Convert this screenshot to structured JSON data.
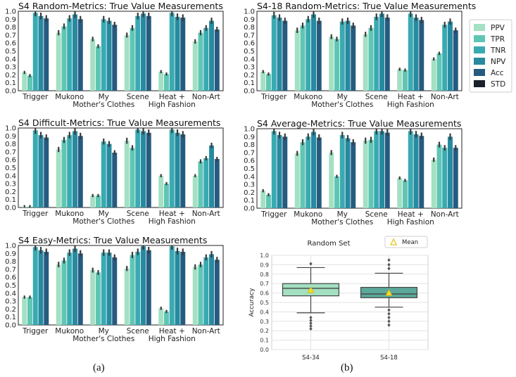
{
  "figure": {
    "caption_a": "(a)",
    "caption_b": "(b)"
  },
  "legend": {
    "labels": [
      "PPV",
      "TPR",
      "TNR",
      "NPV",
      "Acc",
      "STD"
    ],
    "colors": [
      "#a3e0c4",
      "#5fc6b4",
      "#3aaab2",
      "#278aa0",
      "#265b80",
      "#1a2128"
    ]
  },
  "chart_data": [
    {
      "id": "s4-random",
      "type": "bar",
      "title": "S4 Random-Metrics: True Value Measurements",
      "categories": [
        "Trigger",
        "Mukono",
        "My\nMother's Clothes",
        "Scene",
        "Heat +\nHigh Fashion",
        "Non-Art"
      ],
      "ylim": [
        0,
        1.0
      ],
      "yticks": [
        "0.0",
        "0.1",
        "0.2",
        "0.3",
        "0.4",
        "0.5",
        "0.6",
        "0.7",
        "0.8",
        "0.9",
        "1.0"
      ],
      "series": [
        {
          "name": "PPV",
          "values": [
            0.23,
            0.73,
            0.65,
            0.7,
            0.24,
            0.62
          ]
        },
        {
          "name": "TPR",
          "values": [
            0.19,
            0.81,
            0.56,
            0.79,
            0.21,
            0.73
          ]
        },
        {
          "name": "TNR",
          "values": [
            0.98,
            0.91,
            0.9,
            0.94,
            0.98,
            0.79
          ]
        },
        {
          "name": "NPV",
          "values": [
            0.94,
            0.96,
            0.88,
            0.97,
            0.93,
            0.88
          ]
        },
        {
          "name": "Acc",
          "values": [
            0.91,
            0.9,
            0.83,
            0.94,
            0.92,
            0.77
          ]
        }
      ]
    },
    {
      "id": "s4-18-random",
      "type": "bar",
      "title": "S4-18 Random-Metrics: True Value Measurements",
      "categories": [
        "Trigger",
        "Mukono",
        "My\nMother's Clothes",
        "Scene",
        "Heat +\nHigh Fashion",
        "Non-Art"
      ],
      "ylim": [
        0,
        1.0
      ],
      "yticks": [
        "0.0",
        "0.1",
        "0.2",
        "0.3",
        "0.4",
        "0.5",
        "0.6",
        "0.7",
        "0.8",
        "0.9",
        "1.0"
      ],
      "series": [
        {
          "name": "PPV",
          "values": [
            0.24,
            0.76,
            0.68,
            0.71,
            0.27,
            0.4
          ]
        },
        {
          "name": "TPR",
          "values": [
            0.21,
            0.82,
            0.65,
            0.79,
            0.26,
            0.47
          ]
        },
        {
          "name": "TNR",
          "values": [
            0.95,
            0.9,
            0.87,
            0.93,
            0.97,
            0.83
          ]
        },
        {
          "name": "NPV",
          "values": [
            0.92,
            0.96,
            0.88,
            0.97,
            0.92,
            0.87
          ]
        },
        {
          "name": "Acc",
          "values": [
            0.88,
            0.88,
            0.82,
            0.92,
            0.89,
            0.76
          ]
        }
      ]
    },
    {
      "id": "s4-difficult",
      "type": "bar",
      "title": "S4 Difficult-Metrics: True Value Measurements",
      "categories": [
        "Trigger",
        "Mukono",
        "My\nMother's Clothes",
        "Scene",
        "Heat +\nHigh Fashion",
        "Non-Art"
      ],
      "ylim": [
        0,
        1.0
      ],
      "yticks": [
        "0.0",
        "0.1",
        "0.2",
        "0.3",
        "0.4",
        "0.5",
        "0.6",
        "0.7",
        "0.8",
        "0.9",
        "1.0"
      ],
      "series": [
        {
          "name": "PPV",
          "values": [
            0.01,
            0.73,
            0.15,
            0.84,
            0.4,
            0.4
          ]
        },
        {
          "name": "TPR",
          "values": [
            0.01,
            0.85,
            0.15,
            0.75,
            0.3,
            0.58
          ]
        },
        {
          "name": "TNR",
          "values": [
            0.97,
            0.91,
            0.83,
            0.98,
            0.98,
            0.62
          ]
        },
        {
          "name": "NPV",
          "values": [
            0.91,
            0.96,
            0.8,
            0.96,
            0.94,
            0.78
          ]
        },
        {
          "name": "Acc",
          "values": [
            0.88,
            0.9,
            0.69,
            0.94,
            0.92,
            0.61
          ]
        }
      ]
    },
    {
      "id": "s4-average",
      "type": "bar",
      "title": "S4 Average-Metrics: True Value Measurements",
      "categories": [
        "Trigger",
        "Mukono",
        "My\nMother's Clothes",
        "Scene",
        "Heat +\nHigh Fashion",
        "Non-Art"
      ],
      "ylim": [
        0,
        1.0
      ],
      "yticks": [
        "0.0",
        "0.1",
        "0.2",
        "0.3",
        "0.4",
        "0.5",
        "0.6",
        "0.7",
        "0.8",
        "0.9",
        "1.0"
      ],
      "series": [
        {
          "name": "PPV",
          "values": [
            0.22,
            0.69,
            0.7,
            0.85,
            0.38,
            0.61
          ]
        },
        {
          "name": "TPR",
          "values": [
            0.17,
            0.83,
            0.4,
            0.86,
            0.35,
            0.8
          ]
        },
        {
          "name": "TNR",
          "values": [
            0.97,
            0.9,
            0.92,
            0.97,
            0.97,
            0.76
          ]
        },
        {
          "name": "NPV",
          "values": [
            0.92,
            0.96,
            0.88,
            0.97,
            0.93,
            0.9
          ]
        },
        {
          "name": "Acc",
          "values": [
            0.9,
            0.89,
            0.83,
            0.95,
            0.91,
            0.76
          ]
        }
      ]
    },
    {
      "id": "s4-easy",
      "type": "bar",
      "title": "S4 Easy-Metrics: True Value Measurements",
      "categories": [
        "Trigger",
        "Mukono",
        "My\nMother's Clothes",
        "Scene",
        "Heat +\nHigh Fashion",
        "Non-Art"
      ],
      "ylim": [
        0,
        1.0
      ],
      "yticks": [
        "0.0",
        "0.1",
        "0.2",
        "0.3",
        "0.4",
        "0.5",
        "0.6",
        "0.7",
        "0.8",
        "0.9",
        "1.0"
      ],
      "series": [
        {
          "name": "PPV",
          "values": [
            0.35,
            0.76,
            0.69,
            0.71,
            0.21,
            0.73
          ]
        },
        {
          "name": "TPR",
          "values": [
            0.35,
            0.81,
            0.66,
            0.88,
            0.17,
            0.76
          ]
        },
        {
          "name": "TNR",
          "values": [
            0.98,
            0.91,
            0.91,
            0.92,
            0.99,
            0.85
          ]
        },
        {
          "name": "NPV",
          "values": [
            0.94,
            0.96,
            0.91,
            0.99,
            0.93,
            0.89
          ]
        },
        {
          "name": "Acc",
          "values": [
            0.92,
            0.9,
            0.85,
            0.94,
            0.92,
            0.82
          ]
        }
      ]
    },
    {
      "id": "random-set-box",
      "type": "boxplot",
      "title": "Random Set",
      "legend_label": "Mean",
      "categories": [
        "S4-34",
        "S4-18"
      ],
      "ylabel": "Accuracy",
      "ylim": [
        0,
        1.0
      ],
      "yticks": [
        "0.0",
        "0.1",
        "0.2",
        "0.3",
        "0.4",
        "0.5",
        "0.6",
        "0.7",
        "0.8",
        "0.9",
        "1.0"
      ],
      "boxes": [
        {
          "name": "S4-34",
          "whisker_low": 0.39,
          "q1": 0.57,
          "median": 0.65,
          "q3": 0.7,
          "whisker_high": 0.87,
          "mean": 0.63,
          "outliers": [
            0.22,
            0.25,
            0.28,
            0.31,
            0.34,
            0.91
          ]
        },
        {
          "name": "S4-18",
          "whisker_low": 0.45,
          "q1": 0.55,
          "median": 0.59,
          "q3": 0.66,
          "whisker_high": 0.81,
          "mean": 0.6,
          "outliers": [
            0.26,
            0.3,
            0.34,
            0.38,
            0.42,
            0.86,
            0.9,
            0.95
          ]
        }
      ]
    }
  ]
}
